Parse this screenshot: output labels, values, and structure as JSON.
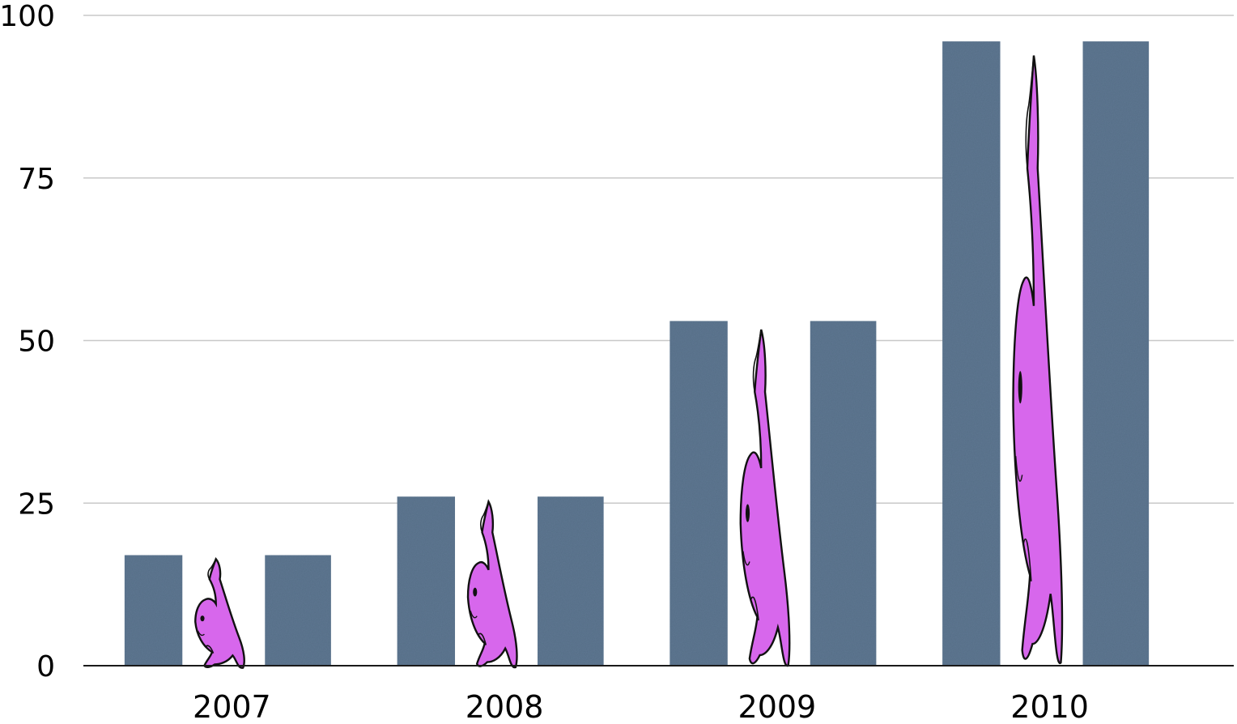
{
  "chart_data": {
    "type": "bar",
    "categories": [
      "2007",
      "2008",
      "2009",
      "2010"
    ],
    "values": [
      17,
      26,
      53,
      96
    ],
    "title": "",
    "xlabel": "",
    "ylabel": "",
    "ylim": [
      0,
      100
    ],
    "yticks": [
      0,
      25,
      50,
      75,
      100
    ],
    "grid": true,
    "legend": "none",
    "bar_color": "#5f7893",
    "pictograph": {
      "icon": "seal-icon",
      "color": "#d767ec",
      "outline": "#111111"
    }
  }
}
